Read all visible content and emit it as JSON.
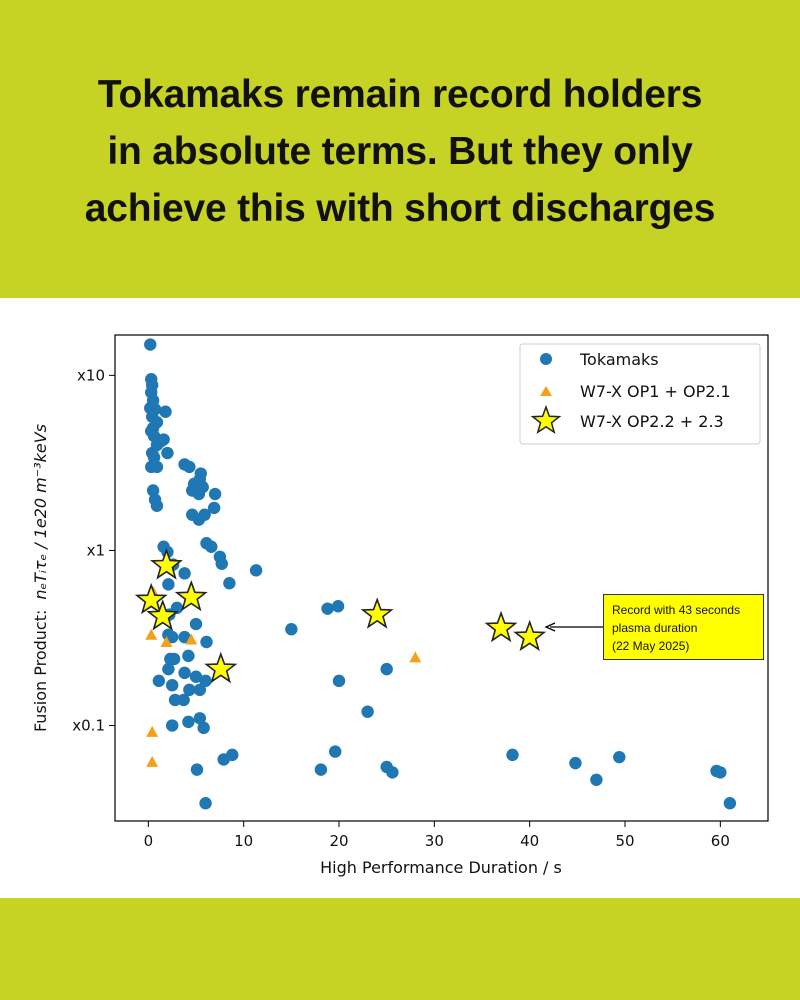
{
  "headline": {
    "line1": "Tokamaks remain record holders",
    "line2": "in absolute terms. But they only",
    "line3": "achieve this with short discharges"
  },
  "colors": {
    "band": "#c6d325",
    "tokamak": "#1f77b4",
    "w7x_op1": "#f5a01a",
    "w7x_op22": "#ffff00"
  },
  "chart_data": {
    "type": "scatter",
    "xlabel": "High Performance Duration / s",
    "ylabel_prefix": "Fusion Product:",
    "ylabel_formula": "nₑTᵢτₑ / 1e20 m⁻³keVs",
    "xlim": [
      -3.5,
      65
    ],
    "ylim": [
      0.0285,
      17
    ],
    "yscale": "log",
    "x_ticks": [
      0,
      10,
      20,
      30,
      40,
      50,
      60
    ],
    "y_ticks": [
      {
        "value": 10,
        "label": "x10"
      },
      {
        "value": 1,
        "label": "x1"
      },
      {
        "value": 0.1,
        "label": "x0.1"
      }
    ],
    "legend": {
      "position": "top-right",
      "entries": [
        "Tokamaks",
        "W7-X OP1 + OP2.1",
        "W7-X OP2.2 + 2.3"
      ]
    },
    "annotation": {
      "lines": [
        "Record with 43 seconds",
        "plasma duration",
        "(22 May 2025)"
      ],
      "points_to": [
        40,
        0.32
      ]
    },
    "series": [
      {
        "name": "Tokamaks",
        "marker": "circle",
        "points": [
          [
            0.2,
            15
          ],
          [
            0.3,
            9.5
          ],
          [
            0.4,
            8.8
          ],
          [
            0.3,
            8.0
          ],
          [
            0.5,
            7.2
          ],
          [
            0.2,
            6.5
          ],
          [
            0.7,
            6.4
          ],
          [
            1.8,
            6.2
          ],
          [
            0.4,
            5.8
          ],
          [
            0.9,
            5.4
          ],
          [
            0.5,
            5.0
          ],
          [
            0.3,
            4.8
          ],
          [
            0.6,
            4.5
          ],
          [
            1.3,
            4.2
          ],
          [
            0.9,
            4.0
          ],
          [
            1.6,
            4.3
          ],
          [
            0.4,
            3.6
          ],
          [
            0.6,
            3.4
          ],
          [
            2.0,
            3.6
          ],
          [
            0.3,
            3.0
          ],
          [
            0.9,
            3.0
          ],
          [
            3.8,
            3.1
          ],
          [
            4.3,
            3.0
          ],
          [
            5.5,
            2.75
          ],
          [
            5.4,
            2.55
          ],
          [
            4.8,
            2.4
          ],
          [
            5.7,
            2.3
          ],
          [
            4.6,
            2.2
          ],
          [
            5.3,
            2.1
          ],
          [
            7.0,
            2.1
          ],
          [
            0.5,
            2.2
          ],
          [
            0.7,
            1.95
          ],
          [
            0.9,
            1.8
          ],
          [
            6.9,
            1.75
          ],
          [
            4.6,
            1.6
          ],
          [
            5.9,
            1.6
          ],
          [
            5.3,
            1.5
          ],
          [
            1.6,
            1.05
          ],
          [
            2.0,
            0.98
          ],
          [
            6.1,
            1.1
          ],
          [
            6.6,
            1.05
          ],
          [
            7.5,
            0.92
          ],
          [
            7.7,
            0.84
          ],
          [
            11.3,
            0.77
          ],
          [
            2.6,
            0.83
          ],
          [
            3.8,
            0.74
          ],
          [
            2.1,
            0.64
          ],
          [
            8.5,
            0.65
          ],
          [
            3.0,
            0.47
          ],
          [
            2.2,
            0.43
          ],
          [
            5.0,
            0.38
          ],
          [
            2.1,
            0.33
          ],
          [
            2.5,
            0.32
          ],
          [
            3.8,
            0.32
          ],
          [
            6.1,
            0.3
          ],
          [
            2.3,
            0.24
          ],
          [
            4.2,
            0.25
          ],
          [
            2.7,
            0.24
          ],
          [
            2.1,
            0.21
          ],
          [
            3.8,
            0.2
          ],
          [
            1.1,
            0.18
          ],
          [
            6.0,
            0.18
          ],
          [
            5.0,
            0.19
          ],
          [
            2.5,
            0.17
          ],
          [
            4.3,
            0.16
          ],
          [
            5.4,
            0.16
          ],
          [
            2.8,
            0.14
          ],
          [
            3.7,
            0.14
          ],
          [
            5.4,
            0.11
          ],
          [
            4.2,
            0.105
          ],
          [
            2.5,
            0.1
          ],
          [
            5.8,
            0.097
          ],
          [
            8.8,
            0.068
          ],
          [
            7.9,
            0.064
          ],
          [
            5.1,
            0.056
          ],
          [
            6.0,
            0.036
          ],
          [
            15.0,
            0.355
          ],
          [
            18.8,
            0.465
          ],
          [
            19.9,
            0.48
          ],
          [
            20.0,
            0.18
          ],
          [
            23.0,
            0.12
          ],
          [
            25.0,
            0.21
          ],
          [
            19.6,
            0.071
          ],
          [
            18.1,
            0.056
          ],
          [
            25.0,
            0.058
          ],
          [
            25.6,
            0.054
          ],
          [
            38.2,
            0.068
          ],
          [
            44.8,
            0.061
          ],
          [
            47.0,
            0.049
          ],
          [
            49.4,
            0.066
          ],
          [
            59.6,
            0.055
          ],
          [
            60.0,
            0.054
          ],
          [
            61.0,
            0.036
          ]
        ]
      },
      {
        "name": "W7-X OP1 + OP2.1",
        "marker": "triangle",
        "points": [
          [
            0.5,
            0.58
          ],
          [
            1.9,
            0.3
          ],
          [
            0.3,
            0.33
          ],
          [
            4.5,
            0.31
          ],
          [
            0.4,
            0.092
          ],
          [
            0.4,
            0.062
          ],
          [
            28.0,
            0.245
          ]
        ]
      },
      {
        "name": "W7-X OP2.2 + 2.3",
        "marker": "star",
        "points": [
          [
            1.9,
            0.82
          ],
          [
            0.3,
            0.52
          ],
          [
            4.5,
            0.54
          ],
          [
            1.5,
            0.42
          ],
          [
            7.6,
            0.21
          ],
          [
            24.0,
            0.43
          ],
          [
            37.0,
            0.36
          ],
          [
            40.0,
            0.32
          ]
        ]
      }
    ]
  }
}
